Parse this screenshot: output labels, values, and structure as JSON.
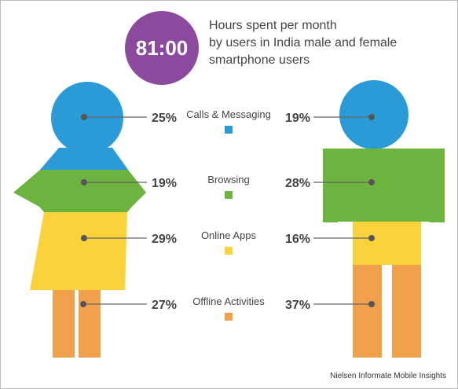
{
  "badge": {
    "value": "81:00",
    "color": "#8b4a9e"
  },
  "title_lines": [
    "Hours spent per month",
    "by users in India male and female",
    "smartphone users"
  ],
  "source": "Nielsen Informate Mobile Insights",
  "colors": {
    "calls_messaging": "#2a9bd7",
    "browsing": "#6db33f",
    "online_apps": "#f9d23c",
    "offline_activities": "#f0a04a",
    "leader_line": "#666666"
  },
  "chart_data": {
    "type": "bar",
    "categories": [
      "Calls & Messaging",
      "Browsing",
      "Online Apps",
      "Offline Activities"
    ],
    "series": [
      {
        "values": [
          25,
          19,
          29,
          27
        ]
      },
      {
        "values": [
          19,
          28,
          16,
          37
        ]
      }
    ],
    "value_labels": {
      "female": [
        "25%",
        "19%",
        "29%",
        "27%"
      ],
      "male": [
        "19%",
        "28%",
        "16%",
        "37%"
      ]
    },
    "legend_colors": [
      "#2a9bd7",
      "#6db33f",
      "#f9d23c",
      "#f0a04a"
    ],
    "title": "Hours spent per month by users in India male and female smartphone users"
  }
}
